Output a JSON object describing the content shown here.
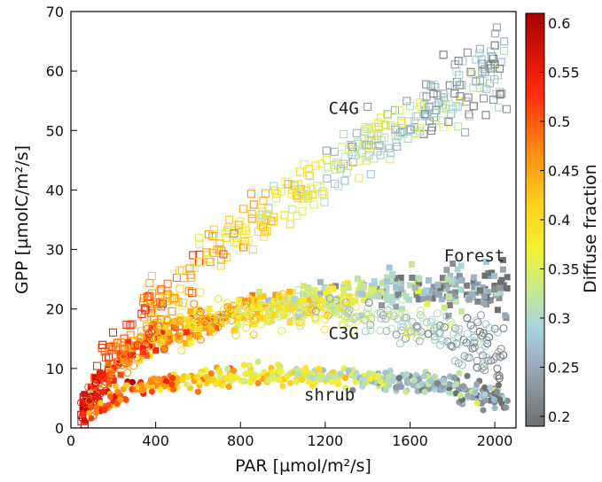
{
  "chart_data": {
    "type": "scatter",
    "title": "",
    "xlabel": "PAR [µmol/m²/s]",
    "ylabel": "GPP [µmolC/m²/s]",
    "xlim": [
      0,
      2100
    ],
    "ylim": [
      0,
      70
    ],
    "xticks": [
      "0",
      "400",
      "800",
      "1200",
      "1600",
      "2000"
    ],
    "yticks": [
      "0",
      "10",
      "20",
      "30",
      "40",
      "50",
      "60",
      "70"
    ],
    "xtick_values": [
      0,
      400,
      800,
      1200,
      1600,
      2000
    ],
    "ytick_values": [
      0,
      10,
      20,
      30,
      40,
      50,
      60,
      70
    ],
    "grid": false,
    "colorbar": {
      "label": "Diffuse fraction",
      "min": 0.19,
      "max": 0.61,
      "ticks": [
        "0.2",
        "0.25",
        "0.3",
        "0.35",
        "0.4",
        "0.45",
        "0.5",
        "0.55",
        "0.6"
      ],
      "tick_values": [
        0.2,
        0.25,
        0.3,
        0.35,
        0.4,
        0.45,
        0.5,
        0.55,
        0.6
      ],
      "stops": [
        {
          "v": 0.19,
          "color": "#6e6e6e"
        },
        {
          "v": 0.25,
          "color": "#9aa9b5"
        },
        {
          "v": 0.29,
          "color": "#a9d2e1"
        },
        {
          "v": 0.33,
          "color": "#c6ea8c"
        },
        {
          "v": 0.37,
          "color": "#f2f234"
        },
        {
          "v": 0.42,
          "color": "#ffcc1c"
        },
        {
          "v": 0.47,
          "color": "#ff8c14"
        },
        {
          "v": 0.53,
          "color": "#ff2a0c"
        },
        {
          "v": 0.61,
          "color": "#a80000"
        }
      ]
    },
    "annotations": [
      {
        "text": "C4G",
        "x": 1215,
        "y": 52.8
      },
      {
        "text": "Forest",
        "x": 1760,
        "y": 28.0
      },
      {
        "text": "C3G",
        "x": 1215,
        "y": 15.0
      },
      {
        "text": "shrub",
        "x": 1100,
        "y": 4.6
      }
    ],
    "series": [
      {
        "marker": "open-square",
        "trend": [
          [
            40,
            2
          ],
          [
            200,
            13
          ],
          [
            400,
            20.5
          ],
          [
            600,
            27
          ],
          [
            800,
            32.5
          ],
          [
            1000,
            38
          ],
          [
            1200,
            43
          ],
          [
            1400,
            48
          ],
          [
            1600,
            52
          ],
          [
            1800,
            56
          ],
          [
            2000,
            60
          ]
        ],
        "x_range": [
          40,
          2060
        ],
        "spread": 2.2,
        "count": 430
      },
      {
        "marker": "filled-square",
        "trend": [
          [
            40,
            3
          ],
          [
            200,
            10
          ],
          [
            400,
            15
          ],
          [
            600,
            17.5
          ],
          [
            800,
            19.5
          ],
          [
            1000,
            21
          ],
          [
            1200,
            22
          ],
          [
            1400,
            23
          ],
          [
            1600,
            23.5
          ],
          [
            1800,
            23.5
          ],
          [
            2050,
            23.5
          ]
        ],
        "x_range": [
          40,
          2060
        ],
        "spread": 1.3,
        "count": 520
      },
      {
        "marker": "open-circle",
        "trend": [
          [
            40,
            2
          ],
          [
            200,
            10
          ],
          [
            400,
            15.5
          ],
          [
            600,
            18
          ],
          [
            800,
            19.5
          ],
          [
            1000,
            20
          ],
          [
            1200,
            20
          ],
          [
            1400,
            19
          ],
          [
            1600,
            17.5
          ],
          [
            1800,
            15.5
          ],
          [
            2000,
            13
          ]
        ],
        "x_range": [
          40,
          2050
        ],
        "spread": 1.5,
        "count": 420
      },
      {
        "marker": "filled-circle",
        "trend": [
          [
            40,
            1.5
          ],
          [
            150,
            4.5
          ],
          [
            300,
            6.5
          ],
          [
            500,
            7.8
          ],
          [
            800,
            8.7
          ],
          [
            1100,
            8.8
          ],
          [
            1400,
            8.3
          ],
          [
            1700,
            7.5
          ],
          [
            1900,
            6
          ],
          [
            2050,
            4.5
          ]
        ],
        "x_range": [
          40,
          2060
        ],
        "spread": 0.8,
        "count": 480
      }
    ]
  }
}
